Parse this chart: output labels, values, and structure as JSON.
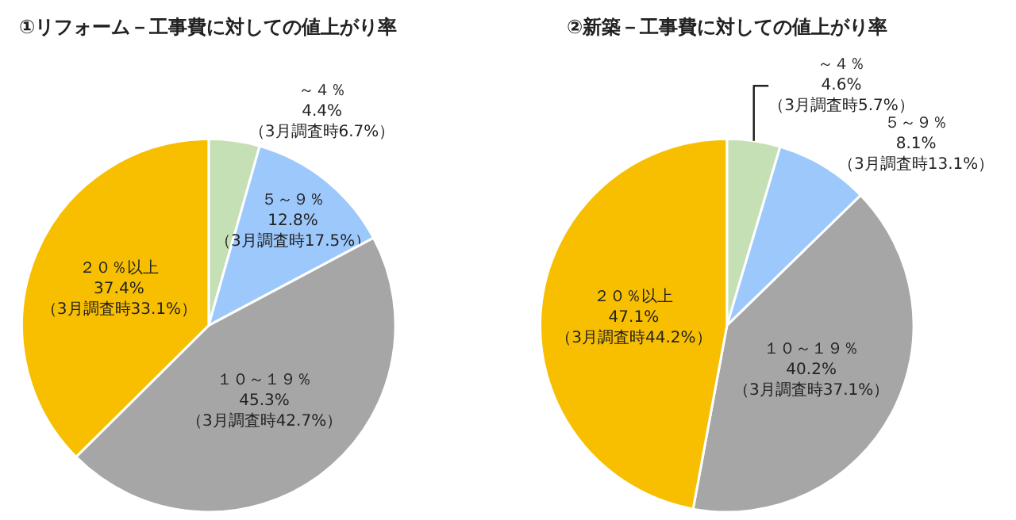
{
  "chart_data": [
    {
      "type": "pie",
      "title": "①リフォーム－工事費に対しての値上がり率",
      "categories": [
        "～４％",
        "５～９％",
        "１０～１９％",
        "２０％以上"
      ],
      "values": [
        4.4,
        12.8,
        45.3,
        37.4
      ],
      "colors": [
        "#c5e0b4",
        "#9dc8fb",
        "#a6a6a6",
        "#f8bf00"
      ],
      "value_labels": [
        "4.4%\n（3月調査時6.7%）",
        "12.8%\n（3月調査時17.5%）",
        "45.3%\n（3月調査時42.7%）",
        "37.4%\n（3月調査時33.1%）"
      ]
    },
    {
      "type": "pie",
      "title": "②新築－工事費に対しての値上がり率",
      "categories": [
        "～４％",
        "５～９％",
        "１０～１９％",
        "２０％以上"
      ],
      "values": [
        4.6,
        8.1,
        40.2,
        47.1
      ],
      "colors": [
        "#c5e0b4",
        "#9dc8fb",
        "#a6a6a6",
        "#f8bf00"
      ],
      "value_labels": [
        "4.6%\n（3月調査時5.7%）",
        "8.1%\n（3月調査時13.1%）",
        "40.2%\n（3月調査時37.1%）",
        "47.1%\n（3月調査時44.2%）"
      ]
    }
  ]
}
